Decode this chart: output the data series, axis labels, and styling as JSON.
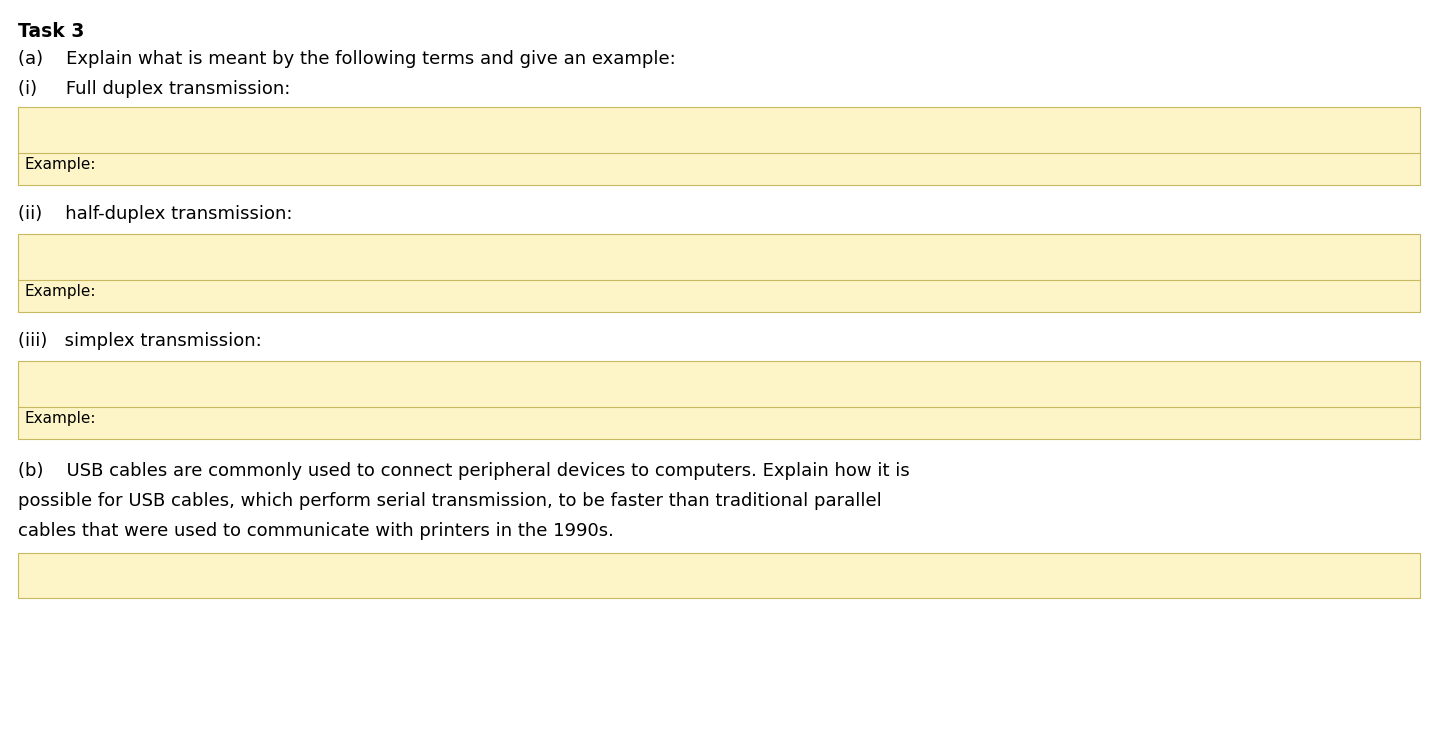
{
  "background_color": "#ffffff",
  "box_fill_color": "#fdf5c8",
  "box_edge_color": "#c8b860",
  "title": "Task 3",
  "line1": "(a)    Explain what is meant by the following terms and give an example:",
  "line2": "(i)     Full duplex transmission:",
  "line3": "(ii)    half-duplex transmission:",
  "line4": "(iii)   simplex transmission:",
  "line5_b": "(b)    USB cables are commonly used to connect peripheral devices to computers. Explain how it is",
  "line5_c": "possible for USB cables, which perform serial transmission, to be faster than traditional parallel",
  "line5_d": "cables that were used to communicate with printers in the 1990s.",
  "example_label": "Example:",
  "title_fontsize": 13.5,
  "body_fontsize": 13,
  "example_fontsize": 11,
  "font_family": "DejaVu Sans"
}
